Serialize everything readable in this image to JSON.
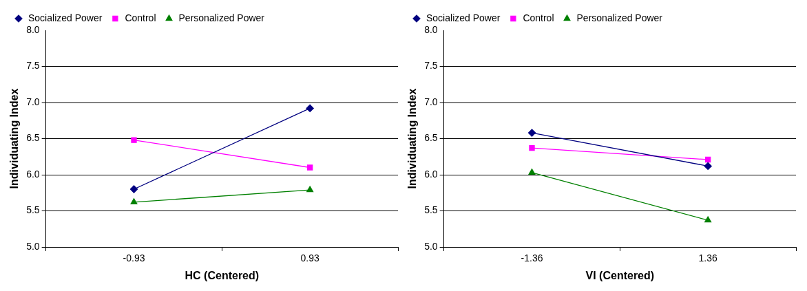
{
  "chart_data": [
    {
      "type": "line",
      "xlabel": "HC (Centered)",
      "ylabel": "Individuating Index",
      "categories": [
        "-0.93",
        "0.93"
      ],
      "ylim": [
        5.0,
        8.0
      ],
      "yticks": [
        {
          "value": 5,
          "label": "5.0"
        },
        {
          "value": 5.5,
          "label": "5.5"
        },
        {
          "value": 6,
          "label": "6.0"
        },
        {
          "value": 6.5,
          "label": "6.5"
        },
        {
          "value": 7,
          "label": "7.0"
        },
        {
          "value": 7.5,
          "label": "7.5"
        },
        {
          "value": 8,
          "label": "8.0"
        }
      ],
      "grid": "y",
      "legend": "top",
      "series": [
        {
          "name": "Socialized Power",
          "color": "#000080",
          "marker": "diamond",
          "values": [
            5.8,
            6.92
          ]
        },
        {
          "name": "Control",
          "color": "#ff00ff",
          "marker": "square",
          "values": [
            6.48,
            6.1
          ]
        },
        {
          "name": "Personalized Power",
          "color": "#008000",
          "marker": "triangle",
          "values": [
            5.62,
            5.79
          ]
        }
      ]
    },
    {
      "type": "line",
      "xlabel": "VI (Centered)",
      "ylabel": "Individuating Index",
      "categories": [
        "-1.36",
        "1.36"
      ],
      "ylim": [
        5.0,
        8.0
      ],
      "yticks": [
        {
          "value": 5,
          "label": "5.0"
        },
        {
          "value": 5.5,
          "label": "5.5"
        },
        {
          "value": 6,
          "label": "6.0"
        },
        {
          "value": 6.5,
          "label": "6.5"
        },
        {
          "value": 7,
          "label": "7.0"
        },
        {
          "value": 7.5,
          "label": "7.5"
        },
        {
          "value": 8,
          "label": "8.0"
        }
      ],
      "grid": "y",
      "legend": "top",
      "series": [
        {
          "name": "Socialized Power",
          "color": "#000080",
          "marker": "diamond",
          "values": [
            6.58,
            6.12
          ]
        },
        {
          "name": "Control",
          "color": "#ff00ff",
          "marker": "square",
          "values": [
            6.37,
            6.21
          ]
        },
        {
          "name": "Personalized Power",
          "color": "#008000",
          "marker": "triangle",
          "values": [
            6.03,
            5.37
          ]
        }
      ]
    }
  ]
}
